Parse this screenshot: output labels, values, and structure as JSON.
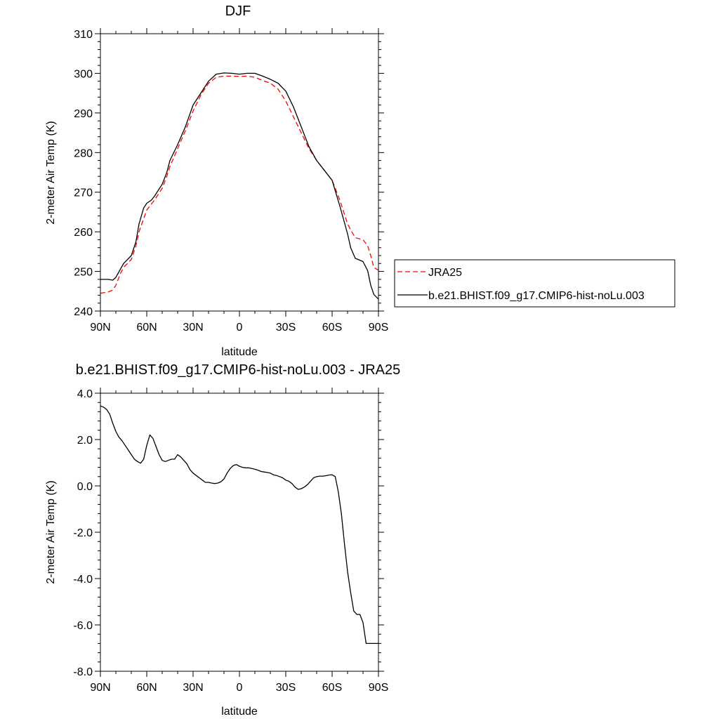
{
  "chart_data": [
    {
      "type": "line",
      "title": "DJF",
      "xlabel": "latitude",
      "ylabel": "2-meter Air Temp (K)",
      "xlim": [
        90,
        -90
      ],
      "ylim": [
        240,
        310
      ],
      "x_ticks": [
        90,
        60,
        30,
        0,
        -30,
        -60,
        -90
      ],
      "x_tick_labels": [
        "90N",
        "60N",
        "30N",
        "0",
        "30S",
        "60S",
        "90S"
      ],
      "y_ticks": [
        240,
        250,
        260,
        270,
        280,
        290,
        300,
        310
      ],
      "y_tick_labels": [
        "240",
        "250",
        "260",
        "270",
        "280",
        "290",
        "300",
        "310"
      ],
      "legend": {
        "placement": "right",
        "entries": [
          {
            "label": "JRA25",
            "series": 0
          },
          {
            "label": "b.e21.BHIST.f09_g17.CMIP6-hist-noLu.003",
            "series": 1
          }
        ]
      },
      "series": [
        {
          "name": "JRA25",
          "color": "#ff0000",
          "dash": "dashed",
          "x": [
            90,
            85,
            82,
            80,
            77,
            75,
            70,
            67,
            65,
            60,
            57,
            55,
            50,
            47,
            45,
            40,
            35,
            30,
            25,
            20,
            15,
            10,
            5,
            0,
            -5,
            -10,
            -15,
            -20,
            -25,
            -30,
            -35,
            -40,
            -45,
            -50,
            -55,
            -60,
            -65,
            -70,
            -72,
            -75,
            -80,
            -83,
            -85,
            -87,
            -90
          ],
          "y": [
            244.5,
            244.8,
            245.3,
            246.5,
            249.5,
            251,
            253,
            256.5,
            260,
            265.5,
            267,
            268,
            271,
            274,
            276.5,
            281,
            285.5,
            290.5,
            294.5,
            297.5,
            299,
            299.3,
            299.3,
            299.2,
            299.3,
            299,
            298.2,
            297.5,
            296,
            293,
            289,
            285,
            281,
            278,
            275.5,
            273,
            268,
            262,
            260.5,
            258.5,
            258,
            256.5,
            254,
            251,
            250.3
          ]
        },
        {
          "name": "b.e21.BHIST.f09_g17.CMIP6-hist-noLu.003",
          "color": "#000000",
          "dash": "solid",
          "x": [
            90,
            85,
            82,
            80,
            75,
            70,
            67,
            65,
            62,
            60,
            57,
            55,
            50,
            47,
            45,
            40,
            35,
            30,
            25,
            20,
            15,
            10,
            5,
            0,
            -5,
            -10,
            -15,
            -20,
            -25,
            -30,
            -35,
            -40,
            -45,
            -50,
            -55,
            -60,
            -65,
            -70,
            -72,
            -75,
            -80,
            -83,
            -85,
            -87,
            -90
          ],
          "y": [
            248,
            248,
            247.8,
            248.5,
            252,
            254,
            257.5,
            262,
            266,
            267.2,
            268,
            269,
            272,
            275,
            278,
            282,
            286.5,
            292,
            295,
            298,
            299.8,
            300.1,
            300,
            299.8,
            300,
            300,
            299.3,
            298.5,
            297.5,
            295.5,
            291.5,
            286.5,
            281.5,
            278,
            275.5,
            273,
            266.5,
            259.5,
            256,
            253.3,
            252.5,
            250.2,
            246.5,
            244.2,
            243
          ]
        }
      ]
    },
    {
      "type": "line",
      "title": "b.e21.BHIST.f09_g17.CMIP6-hist-noLu.003 - JRA25",
      "xlabel": "latitude",
      "ylabel": "2-meter Air Temp (K)",
      "xlim": [
        90,
        -90
      ],
      "ylim": [
        -8,
        4
      ],
      "x_ticks": [
        90,
        60,
        30,
        0,
        -30,
        -60,
        -90
      ],
      "x_tick_labels": [
        "90N",
        "60N",
        "30N",
        "0",
        "30S",
        "60S",
        "90S"
      ],
      "y_ticks": [
        -8,
        -6,
        -4,
        -2,
        0,
        2,
        4
      ],
      "y_tick_labels": [
        "-8.0",
        "-6.0",
        "-4.0",
        "-2.0",
        "0.0",
        "2.0",
        "4.0"
      ],
      "series": [
        {
          "name": "b.e21.BHIST.f09_g17.CMIP6-hist-noLu.003 - JRA25",
          "color": "#000000",
          "dash": "solid",
          "x": [
            90,
            88,
            86,
            84,
            82,
            80,
            78,
            76,
            74,
            72,
            70,
            68,
            66,
            64,
            62,
            60,
            58,
            56,
            54,
            52,
            50,
            48,
            46,
            44,
            42,
            40,
            38,
            36,
            34,
            32,
            30,
            28,
            26,
            24,
            22,
            20,
            18,
            16,
            14,
            12,
            10,
            8,
            6,
            4,
            2,
            0,
            -2,
            -4,
            -6,
            -8,
            -10,
            -12,
            -14,
            -16,
            -18,
            -20,
            -22,
            -24,
            -26,
            -28,
            -30,
            -32,
            -34,
            -36,
            -38,
            -40,
            -42,
            -44,
            -46,
            -48,
            -50,
            -52,
            -54,
            -56,
            -58,
            -60,
            -62,
            -64,
            -66,
            -68,
            -70,
            -72,
            -74,
            -76,
            -78,
            -80,
            -82,
            -84,
            -86,
            -88,
            -90
          ],
          "y": [
            3.45,
            3.4,
            3.3,
            3.1,
            2.7,
            2.35,
            2.1,
            1.95,
            1.75,
            1.55,
            1.35,
            1.15,
            1.05,
            0.98,
            1.15,
            1.75,
            2.2,
            2.05,
            1.7,
            1.35,
            1.1,
            1.05,
            1.1,
            1.15,
            1.15,
            1.35,
            1.25,
            1.1,
            0.95,
            0.7,
            0.55,
            0.45,
            0.35,
            0.25,
            0.15,
            0.15,
            0.12,
            0.1,
            0.12,
            0.18,
            0.3,
            0.55,
            0.75,
            0.88,
            0.92,
            0.85,
            0.8,
            0.78,
            0.78,
            0.75,
            0.72,
            0.68,
            0.62,
            0.6,
            0.58,
            0.55,
            0.48,
            0.45,
            0.4,
            0.35,
            0.25,
            0.2,
            0.1,
            -0.05,
            -0.15,
            -0.12,
            -0.05,
            0.05,
            0.2,
            0.35,
            0.4,
            0.42,
            0.42,
            0.44,
            0.47,
            0.48,
            0.4,
            -0.25,
            -1.2,
            -2.5,
            -3.7,
            -4.6,
            -5.4,
            -5.55,
            -5.55,
            -5.9,
            -6.8,
            -6.8,
            -6.8,
            -6.8,
            -6.8
          ]
        }
      ]
    }
  ]
}
